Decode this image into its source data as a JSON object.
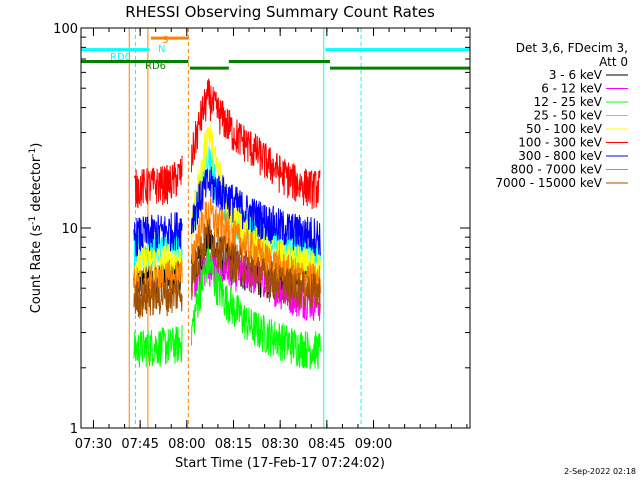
{
  "chart_data": {
    "type": "line",
    "title": "RHESSI Observing Summary Count Rates",
    "xlabel": "Start Time (17-Feb-17 07:24:02)",
    "ylabel_main": "Count Rate (s",
    "ylabel_sup1": "-1",
    "ylabel_mid": " detector",
    "ylabel_sup2": "-1",
    "ylabel_end": ")",
    "yscale": "log",
    "ylim": [
      1,
      100
    ],
    "xlim_minutes": [
      446,
      571
    ],
    "x_ticks": [
      {
        "minute": 450,
        "label": "07:30"
      },
      {
        "minute": 465,
        "label": "07:45"
      },
      {
        "minute": 480,
        "label": "08:00"
      },
      {
        "minute": 495,
        "label": "08:15"
      },
      {
        "minute": 510,
        "label": "08:30"
      },
      {
        "minute": 525,
        "label": "08:45"
      },
      {
        "minute": 540,
        "label": "09:00"
      }
    ],
    "y_ticks": [
      {
        "value": 1,
        "label": "1"
      },
      {
        "value": 10,
        "label": "10"
      },
      {
        "value": 100,
        "label": "100"
      }
    ],
    "legend_header": [
      "Det 3,6, FDecim 3,",
      "Att 0"
    ],
    "series": [
      {
        "name": "3 - 6 keV",
        "color": "#000000",
        "points": [
          [
            463,
            5.5
          ],
          [
            469,
            5.6
          ],
          [
            475,
            5.7
          ],
          [
            478.5,
            5.8
          ],
          [
            481.5,
            6.2
          ],
          [
            485,
            7.5
          ],
          [
            487,
            9
          ],
          [
            489,
            8
          ],
          [
            492,
            7
          ],
          [
            495,
            6.5
          ],
          [
            500,
            6
          ],
          [
            505,
            5.7
          ],
          [
            510,
            5.5
          ],
          [
            515,
            5.4
          ],
          [
            520,
            5.3
          ],
          [
            523,
            5.3
          ]
        ]
      },
      {
        "name": "6 - 12 keV",
        "color": "#ff00ff",
        "points": [
          [
            481.5,
            5.5
          ],
          [
            485,
            6.2
          ],
          [
            487,
            6.5
          ],
          [
            490,
            6.3
          ],
          [
            495,
            6.2
          ],
          [
            500,
            6.0
          ],
          [
            505,
            5.6
          ],
          [
            510,
            5.0
          ],
          [
            515,
            4.6
          ],
          [
            520,
            4.4
          ],
          [
            523,
            4.3
          ]
        ]
      },
      {
        "name": "12 - 25 keV",
        "color": "#00ff00",
        "points": [
          [
            463,
            2.5
          ],
          [
            469,
            2.6
          ],
          [
            475,
            2.6
          ],
          [
            478.5,
            2.7
          ],
          [
            481.5,
            3.0
          ],
          [
            485,
            5.5
          ],
          [
            487,
            7
          ],
          [
            489,
            5.5
          ],
          [
            492,
            4.5
          ],
          [
            495,
            4
          ],
          [
            500,
            3.3
          ],
          [
            505,
            3.0
          ],
          [
            510,
            2.8
          ],
          [
            515,
            2.6
          ],
          [
            520,
            2.5
          ],
          [
            523,
            2.5
          ]
        ]
      },
      {
        "name": "25 - 50 keV",
        "color": "#00ffff",
        "points": [
          [
            463,
            7.5
          ],
          [
            469,
            7.8
          ],
          [
            475,
            8.2
          ],
          [
            478.5,
            8.6
          ],
          [
            481.5,
            10
          ],
          [
            485,
            18
          ],
          [
            487,
            24
          ],
          [
            489,
            17
          ],
          [
            492,
            13
          ],
          [
            495,
            11
          ],
          [
            500,
            9.5
          ],
          [
            505,
            8.5
          ],
          [
            510,
            8.0
          ],
          [
            515,
            7.8
          ],
          [
            520,
            7.6
          ],
          [
            523,
            7.5
          ]
        ]
      },
      {
        "name": "50 - 100 keV",
        "color": "#ffff00",
        "points": [
          [
            463,
            6.5
          ],
          [
            469,
            6.8
          ],
          [
            475,
            7.0
          ],
          [
            478.5,
            7.2
          ],
          [
            481.5,
            9
          ],
          [
            485,
            20
          ],
          [
            487,
            31
          ],
          [
            489,
            22
          ],
          [
            492,
            15
          ],
          [
            495,
            12
          ],
          [
            500,
            9
          ],
          [
            505,
            8
          ],
          [
            510,
            7.2
          ],
          [
            515,
            6.8
          ],
          [
            520,
            6.5
          ],
          [
            523,
            6.5
          ]
        ]
      },
      {
        "name": "100 - 300 keV",
        "color": "#ff0000",
        "points": [
          [
            463,
            16
          ],
          [
            469,
            16.5
          ],
          [
            475,
            17
          ],
          [
            478.5,
            19
          ],
          [
            481.5,
            22
          ],
          [
            485,
            38
          ],
          [
            487,
            46
          ],
          [
            489,
            40
          ],
          [
            492,
            35
          ],
          [
            495,
            30
          ],
          [
            500,
            26
          ],
          [
            505,
            22
          ],
          [
            510,
            19
          ],
          [
            515,
            17
          ],
          [
            520,
            16
          ],
          [
            523,
            16
          ]
        ]
      },
      {
        "name": "300 - 800 keV",
        "color": "#0000ff",
        "points": [
          [
            463,
            9.2
          ],
          [
            469,
            9.5
          ],
          [
            475,
            9.8
          ],
          [
            478.5,
            10.2
          ],
          [
            481.5,
            11
          ],
          [
            485,
            15
          ],
          [
            487,
            17
          ],
          [
            489,
            16
          ],
          [
            492,
            15
          ],
          [
            495,
            13.5
          ],
          [
            500,
            12
          ],
          [
            505,
            11
          ],
          [
            510,
            10.2
          ],
          [
            515,
            9.7
          ],
          [
            520,
            9.4
          ],
          [
            523,
            9.2
          ]
        ]
      },
      {
        "name": "800 - 7000 keV",
        "color": "#ff8000",
        "points": [
          [
            463,
            5.2
          ],
          [
            469,
            5.4
          ],
          [
            475,
            5.6
          ],
          [
            478.5,
            5.8
          ],
          [
            481.5,
            7
          ],
          [
            485,
            10.5
          ],
          [
            487,
            12
          ],
          [
            489,
            11
          ],
          [
            492,
            10
          ],
          [
            495,
            9
          ],
          [
            500,
            8
          ],
          [
            505,
            7
          ],
          [
            510,
            6.3
          ],
          [
            515,
            5.8
          ],
          [
            520,
            5.5
          ],
          [
            523,
            5.4
          ]
        ]
      },
      {
        "name": "7000 - 15000 keV",
        "color": "#a05000",
        "points": [
          [
            463,
            4.5
          ],
          [
            469,
            4.6
          ],
          [
            475,
            4.7
          ],
          [
            478.5,
            4.9
          ],
          [
            481.5,
            5.5
          ],
          [
            485,
            8
          ],
          [
            487,
            9.5
          ],
          [
            489,
            8.5
          ],
          [
            492,
            7.5
          ],
          [
            495,
            7
          ],
          [
            500,
            6.3
          ],
          [
            505,
            5.8
          ],
          [
            510,
            5.4
          ],
          [
            515,
            5.1
          ],
          [
            520,
            4.9
          ],
          [
            523,
            4.8
          ]
        ]
      }
    ],
    "state_labels": {
      "rd0": "RD0",
      "rd6": "RD6",
      "s": "S",
      "n": "N"
    },
    "state_colors": {
      "rd0": "#00ffff",
      "rd6": "#008000",
      "s": "#ff8000",
      "n": "#00ffff"
    },
    "state_bars": [
      {
        "key": "rd0",
        "start": 446,
        "end": 468,
        "level": 78
      },
      {
        "key": "rd0",
        "start": 524.5,
        "end": 571,
        "level": 78
      },
      {
        "key": "s",
        "start": 468.5,
        "end": 480.5,
        "level": 89
      },
      {
        "key": "rd6",
        "start": 446,
        "end": 480.5,
        "level": 68
      },
      {
        "key": "rd6",
        "start": 481,
        "end": 493.5,
        "level": 63
      },
      {
        "key": "rd6",
        "start": 493.5,
        "end": 526,
        "level": 68
      },
      {
        "key": "rd6",
        "start": 526,
        "end": 571,
        "level": 63
      }
    ],
    "vertical_markers": [
      {
        "minute": 446,
        "color": "#00ffff",
        "dash": "solid"
      },
      {
        "minute": 463.5,
        "color": "#00ffff",
        "dash": "dashed"
      },
      {
        "minute": 467.5,
        "color": "#ff8000",
        "dash": "solid"
      },
      {
        "minute": 461.5,
        "color": "#ff8000",
        "dash": "solid"
      },
      {
        "minute": 480.5,
        "color": "#ff8000",
        "dash": "dashed"
      },
      {
        "minute": 524,
        "color": "#00ffff",
        "dash": "solid"
      },
      {
        "minute": 536,
        "color": "#00ffff",
        "dash": "dashed"
      }
    ],
    "data_gaps": [
      [
        446,
        463
      ],
      [
        478.5,
        481.5
      ],
      [
        523,
        571
      ]
    ]
  },
  "footer_date": "2-Sep-2022 02:18"
}
